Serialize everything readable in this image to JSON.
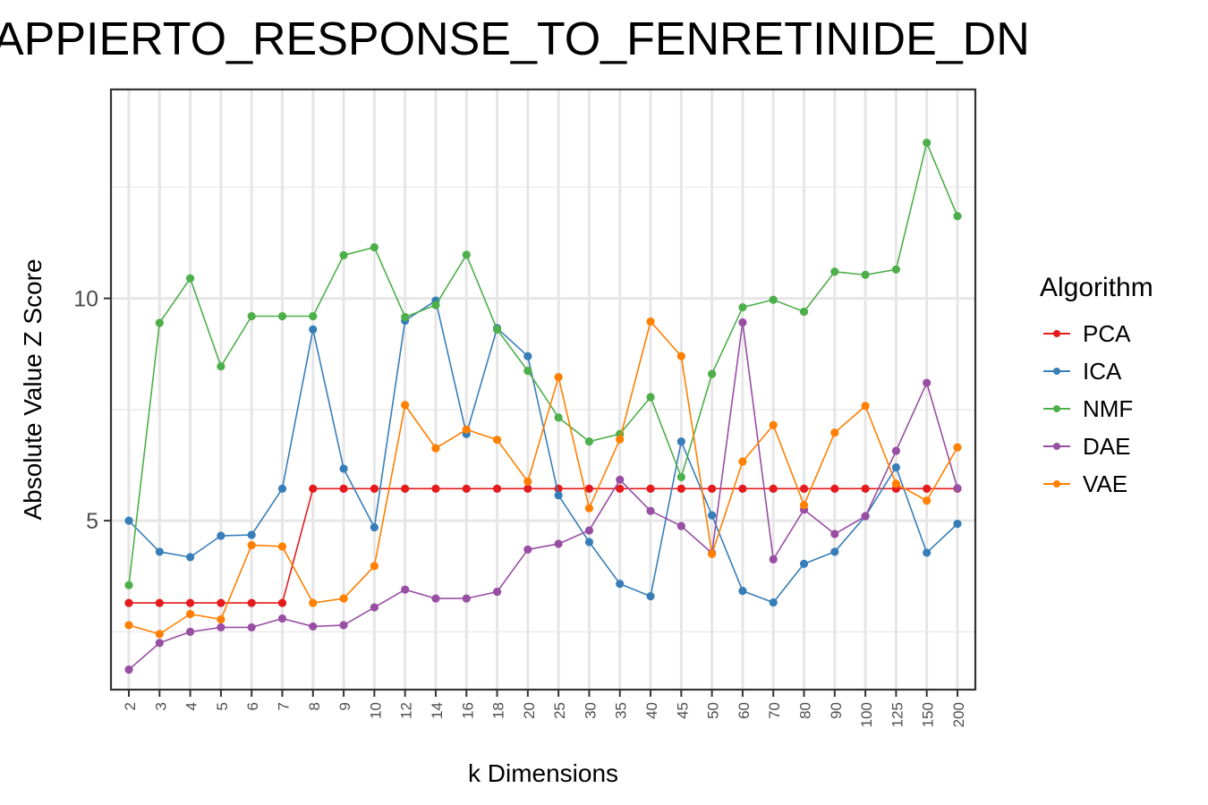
{
  "chart_data": {
    "type": "line",
    "title": "APPIERTO_RESPONSE_TO_FENRETINIDE_DN",
    "xlabel": "k Dimensions",
    "ylabel": "Absolute Value Z Score",
    "categories": [
      "2",
      "3",
      "4",
      "5",
      "6",
      "7",
      "8",
      "9",
      "10",
      "12",
      "14",
      "16",
      "18",
      "20",
      "25",
      "30",
      "35",
      "40",
      "45",
      "50",
      "60",
      "70",
      "80",
      "90",
      "100",
      "125",
      "150",
      "200"
    ],
    "yticks": [
      5,
      10
    ],
    "ylim": [
      1.2,
      14.7
    ],
    "grid": true,
    "legend": {
      "title": "Algorithm",
      "position": "right"
    },
    "series": [
      {
        "name": "PCA",
        "color": "#e41a1c",
        "values": [
          3.15,
          3.15,
          3.15,
          3.15,
          3.15,
          3.15,
          5.72,
          5.72,
          5.72,
          5.72,
          5.72,
          5.72,
          5.72,
          5.72,
          5.72,
          5.72,
          5.72,
          5.72,
          5.72,
          5.72,
          5.72,
          5.72,
          5.72,
          5.72,
          5.72,
          5.72,
          5.72,
          5.72
        ]
      },
      {
        "name": "ICA",
        "color": "#377eb8",
        "values": [
          5.0,
          4.3,
          4.18,
          4.66,
          4.68,
          5.72,
          9.3,
          6.17,
          4.85,
          9.5,
          9.95,
          6.95,
          9.33,
          8.7,
          5.57,
          4.52,
          3.58,
          3.3,
          6.78,
          5.12,
          3.42,
          3.16,
          4.03,
          4.3,
          5.1,
          6.2,
          4.28,
          4.93
        ]
      },
      {
        "name": "NMF",
        "color": "#4daf4a",
        "values": [
          3.55,
          9.45,
          10.45,
          8.47,
          9.6,
          9.6,
          9.6,
          10.97,
          11.15,
          9.58,
          9.85,
          10.98,
          9.3,
          8.37,
          7.32,
          6.78,
          6.95,
          7.78,
          5.98,
          8.3,
          9.8,
          9.97,
          9.7,
          10.6,
          10.53,
          10.65,
          13.5,
          11.85
        ]
      },
      {
        "name": "DAE",
        "color": "#984ea3",
        "values": [
          1.65,
          2.25,
          2.5,
          2.6,
          2.6,
          2.8,
          2.62,
          2.65,
          3.05,
          3.45,
          3.25,
          3.25,
          3.4,
          4.35,
          4.48,
          4.78,
          5.92,
          5.22,
          4.88,
          4.27,
          9.46,
          4.13,
          5.25,
          4.7,
          5.1,
          6.57,
          8.1,
          5.73
        ]
      },
      {
        "name": "VAE",
        "color": "#ff7f00",
        "values": [
          2.65,
          2.45,
          2.9,
          2.78,
          4.45,
          4.42,
          3.15,
          3.25,
          3.98,
          7.6,
          6.63,
          7.05,
          6.82,
          5.88,
          8.23,
          5.28,
          6.83,
          9.48,
          8.7,
          4.25,
          6.33,
          7.15,
          5.35,
          6.98,
          7.58,
          5.83,
          5.45,
          6.65
        ]
      }
    ]
  }
}
